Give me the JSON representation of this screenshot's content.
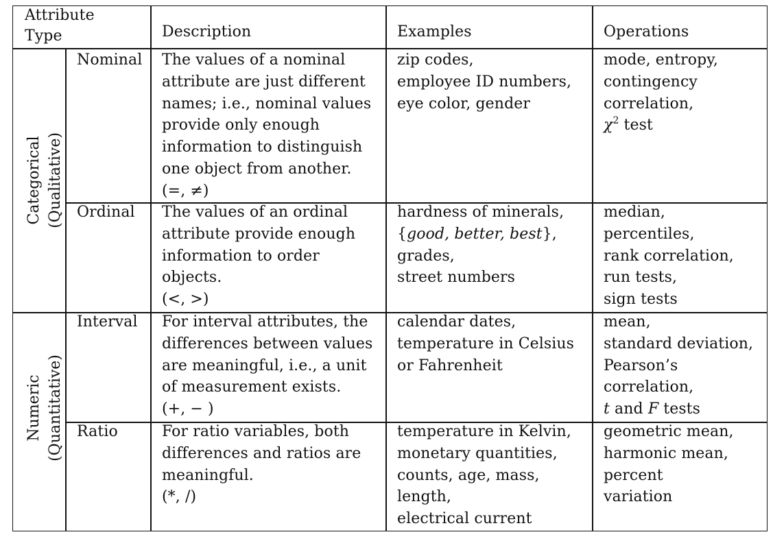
{
  "header": {
    "attribute_type_line1": "Attribute",
    "attribute_type_line2": "Type",
    "description": "Description",
    "examples": "Examples",
    "operations": "Operations"
  },
  "groups": [
    {
      "line1": "Categorical",
      "line2": "(Qualitative)"
    },
    {
      "line1": "Numeric",
      "line2": "(Quantitative)"
    }
  ],
  "rows": [
    {
      "type": "Nominal",
      "description": [
        "The values of a nominal",
        "attribute are just different",
        "names; i.e., nominal values",
        "provide only enough",
        "information to distinguish",
        "one object from another.",
        "(=, ≠)"
      ],
      "examples": [
        "zip codes,",
        "employee ID numbers,",
        "eye color, gender"
      ],
      "operations": [
        "mode, entropy,",
        "contingency",
        "correlation,"
      ],
      "operations_chi": "χ",
      "operations_chi_sup": "2",
      "operations_chi_rest": " test"
    },
    {
      "type": "Ordinal",
      "description": [
        "The values of an ordinal",
        "attribute provide enough",
        "information to order",
        "objects.",
        "(<, >)"
      ],
      "examples_set_open": "{",
      "examples_set_items": "good, better, best",
      "examples_set_close": "},",
      "examples": [
        "hardness of minerals,",
        "grades,",
        "street numbers"
      ],
      "operations": [
        "median,",
        "percentiles,",
        "rank correlation,",
        "run tests,",
        "sign tests"
      ]
    },
    {
      "type": "Interval",
      "description": [
        "For interval attributes, the",
        "differences between values",
        "are meaningful, i.e., a unit",
        "of measurement exists.",
        "(+, − )"
      ],
      "examples": [
        "calendar dates,",
        "temperature in Celsius",
        "or Fahrenheit"
      ],
      "operations": [
        "mean,",
        "standard deviation,",
        "Pearson’s",
        "correlation,"
      ],
      "operations_t": "t",
      "operations_and": " and ",
      "operations_f": "F",
      "operations_tests": " tests"
    },
    {
      "type": "Ratio",
      "description": [
        "For ratio variables, both",
        "differences and ratios are",
        "meaningful.",
        "(*, /)"
      ],
      "examples": [
        "temperature in Kelvin,",
        "monetary quantities,",
        "counts, age, mass,",
        "length,",
        "electrical current"
      ],
      "operations": [
        "geometric mean,",
        "harmonic mean,",
        "percent",
        "variation"
      ]
    }
  ]
}
